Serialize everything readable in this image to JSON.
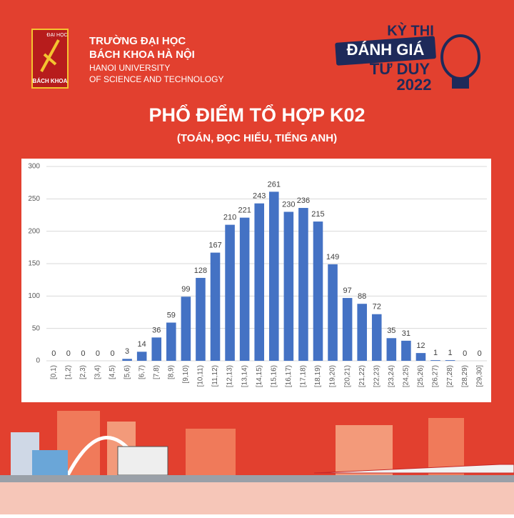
{
  "header": {
    "logo_top": "ĐẠI HỌC",
    "logo_bottom": "BÁCH KHOA",
    "school_vi_1": "TRƯỜNG ĐẠI HỌC",
    "school_vi_2": "BÁCH KHOA HÀ NỘI",
    "school_en_1": "HANOI UNIVERSITY",
    "school_en_2": "OF SCIENCE AND TECHNOLOGY"
  },
  "badge": {
    "line1": "KỲ THI",
    "line2": "ĐÁNH GIÁ",
    "line3": "TƯ DUY",
    "year": "2022"
  },
  "chart_data": {
    "type": "bar",
    "title": "PHỔ ĐIỂM TỔ HỢP K02",
    "subtitle": "(TOÁN, ĐỌC HIỂU, TIẾNG ANH)",
    "categories": [
      "[0,1)",
      "[1,2)",
      "[2,3)",
      "[3,4)",
      "[4,5)",
      "[5,6)",
      "[6,7)",
      "[7,8)",
      "[8,9)",
      "[9,10)",
      "[10,11)",
      "[11,12)",
      "[12,13)",
      "[13,14)",
      "[14,15)",
      "[15,16)",
      "[16,17)",
      "[17,18)",
      "[18,19)",
      "[19,20)",
      "[20,21)",
      "[21,22)",
      "[22,23)",
      "[23,24)",
      "[24,25)",
      "[25,26)",
      "[26,27)",
      "[27,28)",
      "[28,29)",
      "[29,30]"
    ],
    "values": [
      0,
      0,
      0,
      0,
      0,
      3,
      14,
      36,
      59,
      99,
      128,
      167,
      210,
      221,
      243,
      261,
      230,
      236,
      215,
      149,
      97,
      88,
      72,
      35,
      31,
      12,
      1,
      1,
      0,
      0
    ],
    "color": "#4472c4",
    "ylim": [
      0,
      300
    ],
    "yticks": [
      0,
      50,
      100,
      150,
      200,
      250,
      300
    ],
    "grid": true
  }
}
